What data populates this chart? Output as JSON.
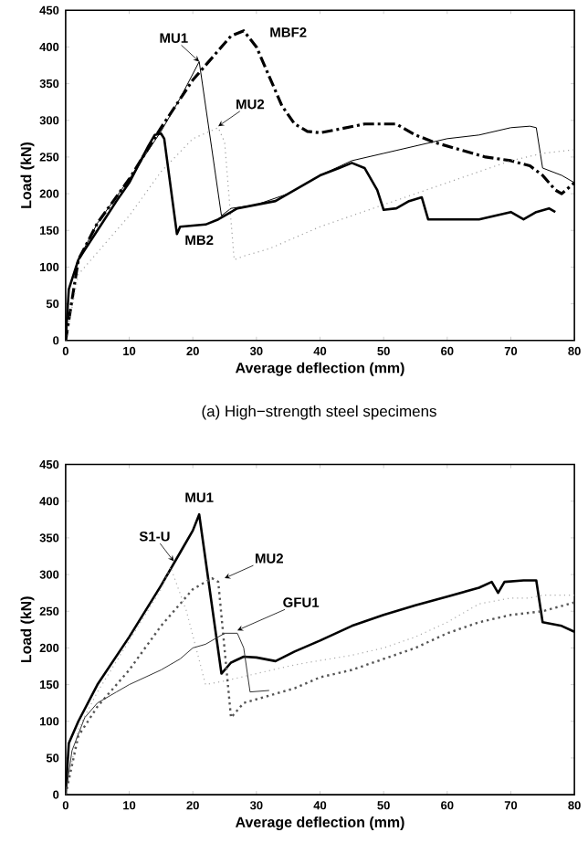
{
  "chart_data": [
    {
      "type": "line",
      "xlabel": "Average deflection (mm)",
      "ylabel": "Load (kN)",
      "annotations": [
        "(a) High−strength steel specimens"
      ],
      "xlim": [
        0,
        80
      ],
      "ylim": [
        0,
        450
      ],
      "xticks": [
        0,
        10,
        20,
        30,
        40,
        50,
        60,
        70,
        80
      ],
      "yticks": [
        0,
        50,
        100,
        150,
        200,
        250,
        300,
        350,
        400,
        450
      ],
      "grid": false,
      "legend": false,
      "series": [
        {
          "name": "MU1",
          "color": "#000000",
          "line_style": "solid",
          "x": [
            0,
            0.5,
            2,
            5,
            10,
            15,
            18,
            21,
            24.5,
            26,
            30,
            35,
            40,
            45,
            50,
            55,
            60,
            65,
            70,
            73,
            74,
            75,
            78,
            80
          ],
          "values": [
            0,
            70,
            110,
            160,
            220,
            285,
            330,
            380,
            170,
            180,
            185,
            200,
            225,
            245,
            255,
            265,
            275,
            280,
            290,
            292,
            290,
            235,
            225,
            215
          ]
        },
        {
          "name": "MBF2",
          "color": "#000000",
          "line_style": "dashed",
          "x": [
            0,
            2,
            5,
            10,
            15,
            20,
            22,
            24,
            26,
            28,
            30,
            32,
            34,
            36,
            38,
            40,
            43,
            47,
            52,
            55,
            58,
            62,
            66,
            70,
            73,
            75,
            77,
            78,
            80
          ],
          "values": [
            0,
            110,
            160,
            220,
            290,
            355,
            375,
            395,
            415,
            422,
            400,
            360,
            320,
            295,
            285,
            283,
            288,
            295,
            295,
            280,
            270,
            260,
            250,
            245,
            238,
            225,
            205,
            200,
            215
          ]
        },
        {
          "name": "MU2",
          "color": "#a0a0a0",
          "line_style": "dotted",
          "x": [
            0,
            2,
            5,
            10,
            15,
            20,
            24,
            25,
            26.5,
            28,
            32,
            36,
            40,
            45,
            50,
            55,
            60,
            65,
            70,
            75,
            80
          ],
          "values": [
            0,
            90,
            120,
            170,
            230,
            275,
            290,
            270,
            110,
            115,
            125,
            140,
            155,
            170,
            185,
            200,
            215,
            230,
            245,
            255,
            260
          ]
        },
        {
          "name": "MB2",
          "color": "#000000",
          "line_style": "solid",
          "x": [
            0,
            0.5,
            2,
            5,
            8,
            10,
            13,
            14,
            15,
            15.5,
            17.5,
            18,
            22,
            24,
            27,
            30,
            33,
            37,
            40,
            43,
            45,
            47,
            49,
            50,
            52,
            54,
            56,
            57,
            60,
            65,
            70,
            72,
            74,
            76,
            77
          ],
          "values": [
            0,
            70,
            110,
            150,
            190,
            215,
            265,
            280,
            282,
            275,
            145,
            155,
            158,
            165,
            180,
            185,
            190,
            210,
            225,
            235,
            242,
            235,
            205,
            178,
            180,
            190,
            195,
            165,
            165,
            165,
            175,
            165,
            175,
            180,
            175
          ]
        }
      ]
    },
    {
      "type": "line",
      "xlabel": "Average deflection (mm)",
      "ylabel": "Load (kN)",
      "xlim": [
        0,
        80
      ],
      "ylim": [
        0,
        450
      ],
      "xticks": [
        0,
        10,
        20,
        30,
        40,
        50,
        60,
        70,
        80
      ],
      "yticks": [
        0,
        50,
        100,
        150,
        200,
        250,
        300,
        350,
        400,
        450
      ],
      "grid": false,
      "legend": false,
      "series": [
        {
          "name": "MU1",
          "color": "#000000",
          "line_style": "solid",
          "x": [
            0,
            0.5,
            2,
            5,
            10,
            15,
            18,
            20,
            21,
            24.5,
            26,
            28,
            30,
            33,
            36,
            40,
            45,
            50,
            55,
            60,
            65,
            67,
            68,
            69,
            72,
            74,
            75,
            78,
            80
          ],
          "values": [
            0,
            70,
            100,
            150,
            215,
            285,
            330,
            360,
            382,
            165,
            180,
            188,
            187,
            182,
            195,
            210,
            230,
            245,
            258,
            270,
            282,
            290,
            275,
            290,
            292,
            292,
            235,
            230,
            222
          ]
        },
        {
          "name": "S1-U",
          "color": "#aaaaaa",
          "line_style": "dotted",
          "x": [
            0,
            2,
            5,
            10,
            15,
            16.5,
            19,
            22,
            25,
            30,
            35,
            38,
            45,
            50,
            55,
            60,
            65,
            70,
            73,
            75,
            80
          ],
          "values": [
            0,
            90,
            140,
            210,
            280,
            310,
            250,
            150,
            155,
            165,
            175,
            180,
            190,
            200,
            215,
            235,
            260,
            268,
            268,
            272,
            272
          ]
        },
        {
          "name": "MU2",
          "color": "#555555",
          "line_style": "dotted",
          "x": [
            0,
            2,
            5,
            10,
            15,
            20,
            23,
            24,
            26,
            28,
            32,
            36,
            40,
            45,
            50,
            55,
            60,
            65,
            70,
            75,
            80
          ],
          "values": [
            0,
            80,
            120,
            170,
            230,
            280,
            295,
            290,
            105,
            125,
            135,
            145,
            160,
            170,
            185,
            200,
            220,
            235,
            245,
            250,
            262
          ]
        },
        {
          "name": "GFU1",
          "color": "#333333",
          "line_style": "solid",
          "x": [
            0,
            1,
            3,
            5,
            8,
            10,
            15,
            18,
            20,
            22,
            25,
            27,
            28,
            29,
            32
          ],
          "values": [
            0,
            60,
            105,
            125,
            140,
            150,
            170,
            185,
            200,
            205,
            220,
            220,
            200,
            140,
            142
          ]
        }
      ]
    }
  ]
}
